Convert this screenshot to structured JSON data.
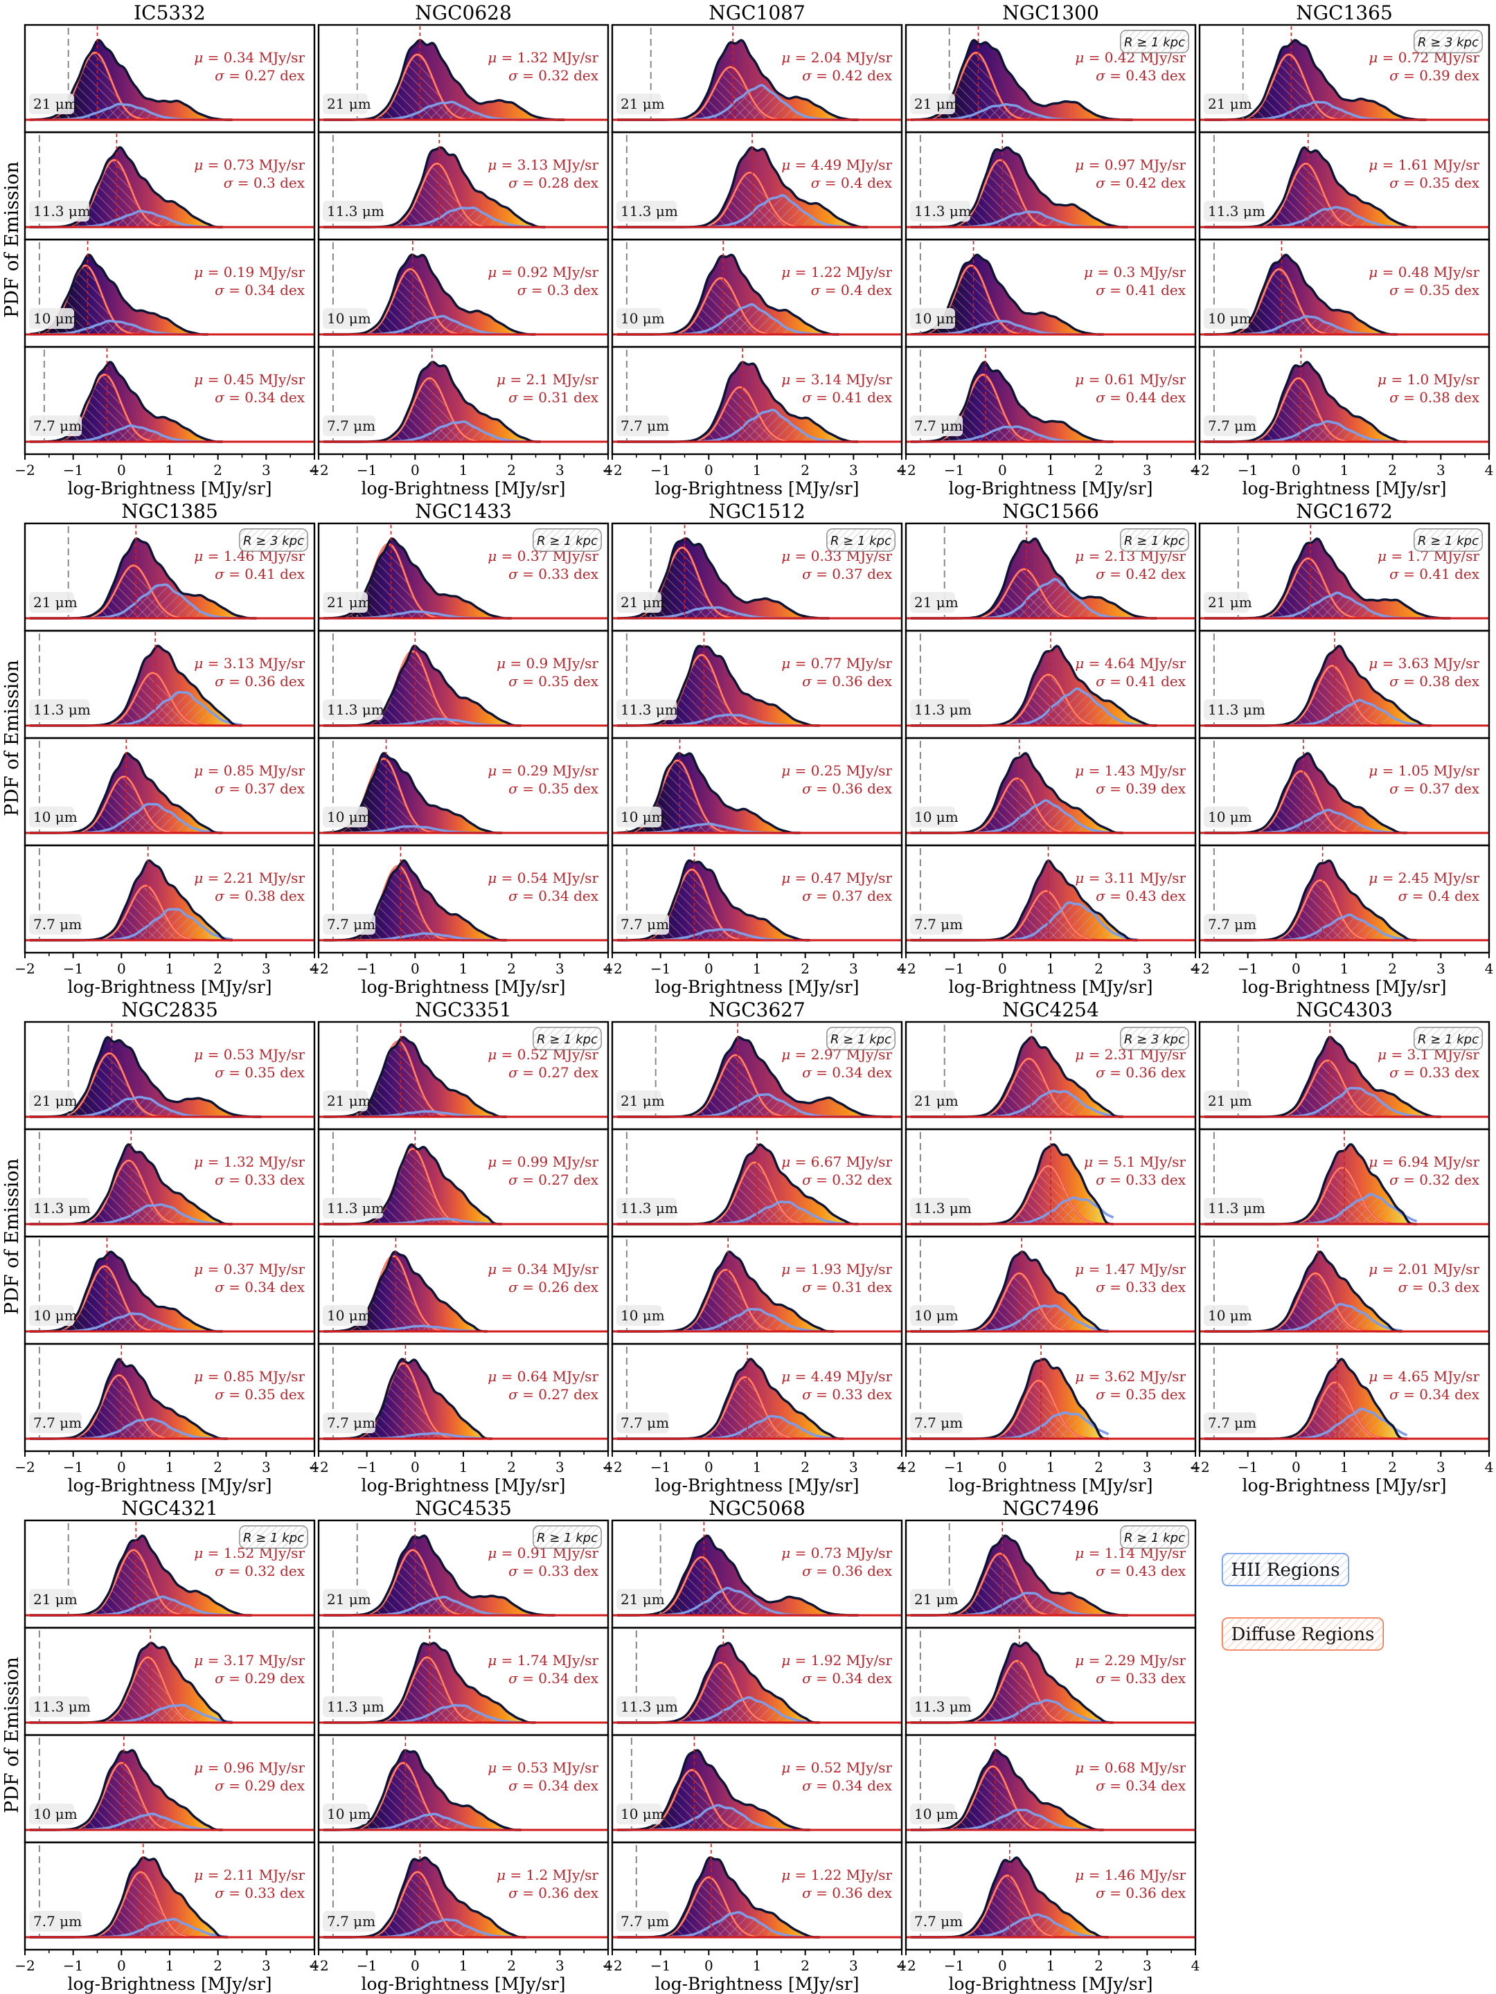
{
  "figure": {
    "ylabel": "PDF of Emission",
    "xlabel": "log-Brightness [MJy/sr]",
    "xlim": [
      -2,
      4
    ],
    "xticks": [
      "−2",
      "−1",
      "0",
      "1",
      "2",
      "3",
      "4"
    ],
    "band_labels": [
      "21 μm",
      "11.3 μm",
      "10 μm",
      "7.7 μm"
    ],
    "legend": [
      {
        "label": "HII Regions",
        "color": "#5b8ee6"
      },
      {
        "label": "Diffuse Regions",
        "color": "#f26b3a"
      }
    ],
    "colors": {
      "outline": "#0b1433",
      "hii": "#7f9ce6",
      "diffuse": "#ff4d38",
      "diffuse_light": "#ffb19a",
      "mean_line": "#cc1f1f",
      "annotation": "#b8232a",
      "noise_line": "#888888",
      "baseline": "#d11a1a"
    }
  },
  "chart_data": {
    "type": "area",
    "description_units": "mu in MJy/sr, sigma in dex",
    "galaxies": [
      {
        "name": "IC5332",
        "radius_cut": "",
        "noise": [
          -1.1,
          -1.7,
          -1.7,
          -1.6
        ],
        "panels": [
          {
            "band": "21 μm",
            "mu": "0.34",
            "sigma": "0.27",
            "peak": -0.5,
            "tail": 2.0,
            "hii_frac": 0.35
          },
          {
            "band": "11.3 μm",
            "mu": "0.73",
            "sigma": "0.3",
            "peak": -0.1,
            "tail": 1.8,
            "hii_frac": 0.35
          },
          {
            "band": "10 μm",
            "mu": "0.19",
            "sigma": "0.34",
            "peak": -0.7,
            "tail": 1.5,
            "hii_frac": 0.3
          },
          {
            "band": "7.7 μm",
            "mu": "0.45",
            "sigma": "0.34",
            "peak": -0.3,
            "tail": 1.8,
            "hii_frac": 0.35
          }
        ]
      },
      {
        "name": "NGC0628",
        "radius_cut": "",
        "noise": [
          -1.2,
          -1.7,
          -1.7,
          -1.7
        ],
        "panels": [
          {
            "band": "21 μm",
            "mu": "1.32",
            "sigma": "0.32",
            "peak": 0.1,
            "tail": 2.8,
            "hii_frac": 0.4
          },
          {
            "band": "11.3 μm",
            "mu": "3.13",
            "sigma": "0.28",
            "peak": 0.5,
            "tail": 2.4,
            "hii_frac": 0.45
          },
          {
            "band": "10 μm",
            "mu": "0.92",
            "sigma": "0.3",
            "peak": -0.05,
            "tail": 2.2,
            "hii_frac": 0.4
          },
          {
            "band": "7.7 μm",
            "mu": "2.1",
            "sigma": "0.31",
            "peak": 0.35,
            "tail": 2.3,
            "hii_frac": 0.45
          }
        ]
      },
      {
        "name": "NGC1087",
        "radius_cut": "",
        "noise": [
          -1.2,
          -1.7,
          -1.7,
          -1.7
        ],
        "panels": [
          {
            "band": "21 μm",
            "mu": "2.04",
            "sigma": "0.42",
            "peak": 0.5,
            "tail": 2.8,
            "hii_frac": 0.75
          },
          {
            "band": "11.3 μm",
            "mu": "4.49",
            "sigma": "0.4",
            "peak": 0.9,
            "tail": 3.0,
            "hii_frac": 0.7
          },
          {
            "band": "10 μm",
            "mu": "1.22",
            "sigma": "0.4",
            "peak": 0.3,
            "tail": 2.4,
            "hii_frac": 0.65
          },
          {
            "band": "7.7 μm",
            "mu": "3.14",
            "sigma": "0.41",
            "peak": 0.7,
            "tail": 2.8,
            "hii_frac": 0.7
          }
        ]
      },
      {
        "name": "NGC1300",
        "radius_cut": "R ≥ 1 kpc",
        "noise": [
          -1.1,
          -1.7,
          -1.7,
          -1.7
        ],
        "panels": [
          {
            "band": "21 μm",
            "mu": "0.42",
            "sigma": "0.43",
            "peak": -0.5,
            "tail": 2.4,
            "hii_frac": 0.35
          },
          {
            "band": "11.3 μm",
            "mu": "0.97",
            "sigma": "0.42",
            "peak": 0.0,
            "tail": 2.3,
            "hii_frac": 0.35
          },
          {
            "band": "10 μm",
            "mu": "0.3",
            "sigma": "0.41",
            "peak": -0.6,
            "tail": 1.8,
            "hii_frac": 0.3
          },
          {
            "band": "7.7 μm",
            "mu": "0.61",
            "sigma": "0.44",
            "peak": -0.35,
            "tail": 2.0,
            "hii_frac": 0.35
          }
        ]
      },
      {
        "name": "NGC1365",
        "radius_cut": "R ≥ 3 kpc",
        "noise": [
          -1.1,
          -1.7,
          -1.7,
          -1.7
        ],
        "panels": [
          {
            "band": "21 μm",
            "mu": "0.72",
            "sigma": "0.39",
            "peak": -0.1,
            "tail": 2.4,
            "hii_frac": 0.4
          },
          {
            "band": "11.3 μm",
            "mu": "1.61",
            "sigma": "0.35",
            "peak": 0.25,
            "tail": 2.2,
            "hii_frac": 0.45
          },
          {
            "band": "10 μm",
            "mu": "0.48",
            "sigma": "0.35",
            "peak": -0.3,
            "tail": 1.8,
            "hii_frac": 0.4
          },
          {
            "band": "7.7 μm",
            "mu": "1.0",
            "sigma": "0.38",
            "peak": 0.1,
            "tail": 2.0,
            "hii_frac": 0.45
          }
        ]
      },
      {
        "name": "NGC1385",
        "radius_cut": "R ≥ 3 kpc",
        "noise": [
          -1.1,
          -1.7,
          -1.7,
          -1.7
        ],
        "panels": [
          {
            "band": "21 μm",
            "mu": "1.46",
            "sigma": "0.41",
            "peak": 0.3,
            "tail": 2.5,
            "hii_frac": 0.75
          },
          {
            "band": "11.3 μm",
            "mu": "3.13",
            "sigma": "0.36",
            "peak": 0.7,
            "tail": 2.2,
            "hii_frac": 0.75
          },
          {
            "band": "10 μm",
            "mu": "0.85",
            "sigma": "0.37",
            "peak": 0.1,
            "tail": 1.8,
            "hii_frac": 0.65
          },
          {
            "band": "7.7 μm",
            "mu": "2.21",
            "sigma": "0.38",
            "peak": 0.55,
            "tail": 2.0,
            "hii_frac": 0.7
          }
        ]
      },
      {
        "name": "NGC1433",
        "radius_cut": "R ≥ 1 kpc",
        "noise": [
          -1.2,
          -1.7,
          -1.7,
          -1.7
        ],
        "panels": [
          {
            "band": "21 μm",
            "mu": "0.37",
            "sigma": "0.33",
            "peak": -0.5,
            "tail": 1.7,
            "hii_frac": 0.15
          },
          {
            "band": "11.3 μm",
            "mu": "0.9",
            "sigma": "0.35",
            "peak": 0.0,
            "tail": 1.9,
            "hii_frac": 0.15
          },
          {
            "band": "10 μm",
            "mu": "0.29",
            "sigma": "0.35",
            "peak": -0.6,
            "tail": 1.5,
            "hii_frac": 0.15
          },
          {
            "band": "7.7 μm",
            "mu": "0.54",
            "sigma": "0.34",
            "peak": -0.3,
            "tail": 1.6,
            "hii_frac": 0.15
          }
        ]
      },
      {
        "name": "NGC1512",
        "radius_cut": "R ≥ 1 kpc",
        "noise": [
          -1.2,
          -1.7,
          -1.7,
          -1.7
        ],
        "panels": [
          {
            "band": "21 μm",
            "mu": "0.33",
            "sigma": "0.37",
            "peak": -0.5,
            "tail": 2.2,
            "hii_frac": 0.25
          },
          {
            "band": "11.3 μm",
            "mu": "0.77",
            "sigma": "0.36",
            "peak": -0.1,
            "tail": 2.0,
            "hii_frac": 0.25
          },
          {
            "band": "10 μm",
            "mu": "0.25",
            "sigma": "0.36",
            "peak": -0.6,
            "tail": 1.6,
            "hii_frac": 0.2
          },
          {
            "band": "7.7 μm",
            "mu": "0.47",
            "sigma": "0.37",
            "peak": -0.3,
            "tail": 1.8,
            "hii_frac": 0.25
          }
        ]
      },
      {
        "name": "NGC1566",
        "radius_cut": "R ≥ 1 kpc",
        "noise": [
          -1.2,
          -1.7,
          -1.7,
          -1.7
        ],
        "panels": [
          {
            "band": "21 μm",
            "mu": "2.13",
            "sigma": "0.42",
            "peak": 0.5,
            "tail": 2.9,
            "hii_frac": 0.85
          },
          {
            "band": "11.3 μm",
            "mu": "4.64",
            "sigma": "0.41",
            "peak": 1.0,
            "tail": 2.9,
            "hii_frac": 0.8
          },
          {
            "band": "10 μm",
            "mu": "1.43",
            "sigma": "0.39",
            "peak": 0.35,
            "tail": 2.2,
            "hii_frac": 0.7
          },
          {
            "band": "7.7 μm",
            "mu": "3.11",
            "sigma": "0.43",
            "peak": 0.95,
            "tail": 2.5,
            "hii_frac": 0.85
          }
        ]
      },
      {
        "name": "NGC1672",
        "radius_cut": "R ≥ 1 kpc",
        "noise": [
          -1.2,
          -1.7,
          -1.7,
          -1.7
        ],
        "panels": [
          {
            "band": "21 μm",
            "mu": "1.7",
            "sigma": "0.41",
            "peak": 0.3,
            "tail": 2.9,
            "hii_frac": 0.55
          },
          {
            "band": "11.3 μm",
            "mu": "3.63",
            "sigma": "0.38",
            "peak": 0.8,
            "tail": 2.5,
            "hii_frac": 0.55
          },
          {
            "band": "10 μm",
            "mu": "1.05",
            "sigma": "0.37",
            "peak": 0.15,
            "tail": 2.0,
            "hii_frac": 0.5
          },
          {
            "band": "7.7 μm",
            "mu": "2.45",
            "sigma": "0.4",
            "peak": 0.55,
            "tail": 2.2,
            "hii_frac": 0.55
          }
        ]
      },
      {
        "name": "NGC2835",
        "radius_cut": "",
        "noise": [
          -1.1,
          -1.7,
          -1.7,
          -1.7
        ],
        "panels": [
          {
            "band": "21 μm",
            "mu": "0.53",
            "sigma": "0.35",
            "peak": -0.2,
            "tail": 2.6,
            "hii_frac": 0.45
          },
          {
            "band": "11.3 μm",
            "mu": "1.32",
            "sigma": "0.33",
            "peak": 0.2,
            "tail": 2.0,
            "hii_frac": 0.45
          },
          {
            "band": "10 μm",
            "mu": "0.37",
            "sigma": "0.34",
            "peak": -0.3,
            "tail": 1.8,
            "hii_frac": 0.4
          },
          {
            "band": "7.7 μm",
            "mu": "0.85",
            "sigma": "0.35",
            "peak": 0.0,
            "tail": 1.9,
            "hii_frac": 0.45
          }
        ]
      },
      {
        "name": "NGC3351",
        "radius_cut": "R ≥ 1 kpc",
        "noise": [
          -1.2,
          -1.7,
          -1.7,
          -1.7
        ],
        "panels": [
          {
            "band": "21 μm",
            "mu": "0.52",
            "sigma": "0.27",
            "peak": -0.3,
            "tail": 1.6,
            "hii_frac": 0.12
          },
          {
            "band": "11.3 μm",
            "mu": "0.99",
            "sigma": "0.27",
            "peak": 0.0,
            "tail": 1.5,
            "hii_frac": 0.12
          },
          {
            "band": "10 μm",
            "mu": "0.34",
            "sigma": "0.26",
            "peak": -0.4,
            "tail": 1.2,
            "hii_frac": 0.12
          },
          {
            "band": "7.7 μm",
            "mu": "0.64",
            "sigma": "0.27",
            "peak": -0.2,
            "tail": 1.3,
            "hii_frac": 0.12
          }
        ]
      },
      {
        "name": "NGC3627",
        "radius_cut": "R ≥ 1 kpc",
        "noise": [
          -1.1,
          -1.7,
          -1.7,
          -1.7
        ],
        "panels": [
          {
            "band": "21 μm",
            "mu": "2.97",
            "sigma": "0.34",
            "peak": 0.6,
            "tail": 3.5,
            "hii_frac": 0.5
          },
          {
            "band": "11.3 μm",
            "mu": "6.67",
            "sigma": "0.32",
            "peak": 1.0,
            "tail": 2.8,
            "hii_frac": 0.5
          },
          {
            "band": "10 μm",
            "mu": "1.93",
            "sigma": "0.31",
            "peak": 0.4,
            "tail": 2.3,
            "hii_frac": 0.5
          },
          {
            "band": "7.7 μm",
            "mu": "4.49",
            "sigma": "0.33",
            "peak": 0.8,
            "tail": 2.5,
            "hii_frac": 0.5
          }
        ]
      },
      {
        "name": "NGC4254",
        "radius_cut": "R ≥ 3 kpc",
        "noise": [
          -1.2,
          -1.7,
          -1.7,
          -1.7
        ],
        "panels": [
          {
            "band": "21 μm",
            "mu": "2.31",
            "sigma": "0.36",
            "peak": 0.6,
            "tail": 2.2,
            "hii_frac": 0.6
          },
          {
            "band": "11.3 μm",
            "mu": "5.1",
            "sigma": "0.33",
            "peak": 1.0,
            "tail": 2.0,
            "hii_frac": 0.6
          },
          {
            "band": "10 μm",
            "mu": "1.47",
            "sigma": "0.33",
            "peak": 0.4,
            "tail": 1.9,
            "hii_frac": 0.6
          },
          {
            "band": "7.7 μm",
            "mu": "3.62",
            "sigma": "0.35",
            "peak": 0.8,
            "tail": 1.9,
            "hii_frac": 0.6
          }
        ]
      },
      {
        "name": "NGC4303",
        "radius_cut": "R ≥ 1 kpc",
        "noise": [
          -1.2,
          -1.7,
          -1.7,
          -1.7
        ],
        "panels": [
          {
            "band": "21 μm",
            "mu": "3.1",
            "sigma": "0.33",
            "peak": 0.7,
            "tail": 2.7,
            "hii_frac": 0.65
          },
          {
            "band": "11.3 μm",
            "mu": "6.94",
            "sigma": "0.32",
            "peak": 1.0,
            "tail": 2.2,
            "hii_frac": 0.65
          },
          {
            "band": "10 μm",
            "mu": "2.01",
            "sigma": "0.3",
            "peak": 0.45,
            "tail": 1.9,
            "hii_frac": 0.6
          },
          {
            "band": "7.7 μm",
            "mu": "4.65",
            "sigma": "0.34",
            "peak": 0.85,
            "tail": 2.0,
            "hii_frac": 0.65
          }
        ]
      },
      {
        "name": "NGC4321",
        "radius_cut": "R ≥ 1 kpc",
        "noise": [
          -1.1,
          -1.7,
          -1.7,
          -1.7
        ],
        "panels": [
          {
            "band": "21 μm",
            "mu": "1.52",
            "sigma": "0.32",
            "peak": 0.3,
            "tail": 2.4,
            "hii_frac": 0.4
          },
          {
            "band": "11.3 μm",
            "mu": "3.17",
            "sigma": "0.29",
            "peak": 0.6,
            "tail": 2.0,
            "hii_frac": 0.4
          },
          {
            "band": "10 μm",
            "mu": "0.96",
            "sigma": "0.29",
            "peak": 0.05,
            "tail": 1.8,
            "hii_frac": 0.35
          },
          {
            "band": "7.7 μm",
            "mu": "2.11",
            "sigma": "0.33",
            "peak": 0.45,
            "tail": 1.9,
            "hii_frac": 0.4
          }
        ]
      },
      {
        "name": "NGC4535",
        "radius_cut": "R ≥ 1 kpc",
        "noise": [
          -1.2,
          -1.7,
          -1.7,
          -1.7
        ],
        "panels": [
          {
            "band": "21 μm",
            "mu": "0.91",
            "sigma": "0.33",
            "peak": 0.0,
            "tail": 2.6,
            "hii_frac": 0.4
          },
          {
            "band": "11.3 μm",
            "mu": "1.74",
            "sigma": "0.34",
            "peak": 0.3,
            "tail": 2.2,
            "hii_frac": 0.4
          },
          {
            "band": "10 μm",
            "mu": "0.53",
            "sigma": "0.34",
            "peak": -0.2,
            "tail": 1.9,
            "hii_frac": 0.35
          },
          {
            "band": "7.7 μm",
            "mu": "1.2",
            "sigma": "0.36",
            "peak": 0.1,
            "tail": 2.0,
            "hii_frac": 0.4
          }
        ]
      },
      {
        "name": "NGC5068",
        "radius_cut": "",
        "noise": [
          -1.0,
          -1.5,
          -1.6,
          -1.5
        ],
        "panels": [
          {
            "band": "21 μm",
            "mu": "0.73",
            "sigma": "0.36",
            "peak": -0.1,
            "tail": 2.8,
            "hii_frac": 0.6
          },
          {
            "band": "11.3 μm",
            "mu": "1.92",
            "sigma": "0.34",
            "peak": 0.3,
            "tail": 2.0,
            "hii_frac": 0.55
          },
          {
            "band": "10 μm",
            "mu": "0.52",
            "sigma": "0.34",
            "peak": -0.3,
            "tail": 1.8,
            "hii_frac": 0.55
          },
          {
            "band": "7.7 μm",
            "mu": "1.22",
            "sigma": "0.36",
            "peak": 0.05,
            "tail": 2.0,
            "hii_frac": 0.55
          }
        ]
      },
      {
        "name": "NGC7496",
        "radius_cut": "R ≥ 1 kpc",
        "noise": [
          -1.1,
          -1.7,
          -1.7,
          -1.7
        ],
        "panels": [
          {
            "band": "21 μm",
            "mu": "1.14",
            "sigma": "0.43",
            "peak": 0.0,
            "tail": 2.3,
            "hii_frac": 0.5
          },
          {
            "band": "11.3 μm",
            "mu": "2.29",
            "sigma": "0.33",
            "peak": 0.35,
            "tail": 2.0,
            "hii_frac": 0.5
          },
          {
            "band": "10 μm",
            "mu": "0.68",
            "sigma": "0.34",
            "peak": -0.15,
            "tail": 1.8,
            "hii_frac": 0.45
          },
          {
            "band": "7.7 μm",
            "mu": "1.46",
            "sigma": "0.36",
            "peak": 0.15,
            "tail": 1.9,
            "hii_frac": 0.5
          }
        ]
      }
    ]
  }
}
